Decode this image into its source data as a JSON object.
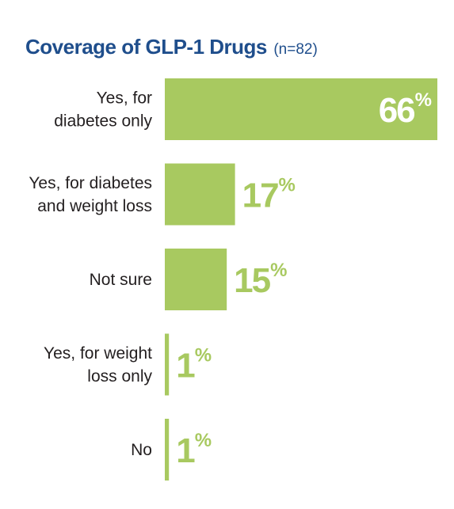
{
  "title": "Coverage of GLP-1 Drugs",
  "subtitle": "(n=82)",
  "colors": {
    "bar": "#a8c960",
    "title": "#1f4e8c",
    "label_text": "#231f20",
    "value_inside": "#ffffff",
    "value_outside": "#a8c960"
  },
  "chart_data": {
    "type": "bar",
    "orientation": "horizontal",
    "title": "Coverage of GLP-1 Drugs",
    "subtitle": "(n=82)",
    "categories": [
      [
        "Yes, for",
        "diabetes only"
      ],
      [
        "Yes, for diabetes",
        "and weight loss"
      ],
      [
        "Not sure"
      ],
      [
        "Yes, for weight",
        "loss only"
      ],
      [
        "No"
      ]
    ],
    "values": [
      66,
      17,
      15,
      1,
      1
    ],
    "value_labels": [
      "66",
      "17",
      "15",
      "1",
      "1"
    ],
    "unit": "%",
    "xlim": [
      0,
      66
    ],
    "grid": false,
    "legend": "none"
  }
}
